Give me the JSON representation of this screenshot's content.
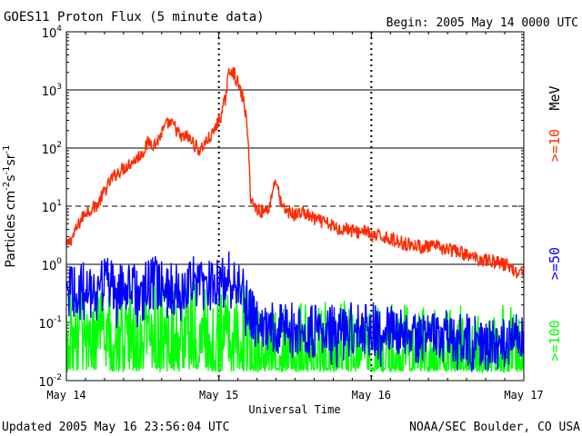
{
  "header": {
    "title": "GOES11 Proton Flux (5 minute data)",
    "begin": "Begin: 2005 May 14 0000 UTC"
  },
  "footer": {
    "updated": "Updated 2005 May 16 23:56:04 UTC",
    "credit": "NOAA/SEC Boulder, CO USA"
  },
  "chart_data": {
    "type": "line",
    "title": "GOES11 Proton Flux (5 minute data)",
    "xlabel": "Universal Time",
    "ylabel": "Particles cm^-2 s^-1 sr^-1",
    "y_scale": "log",
    "ylim": [
      0.01,
      10000
    ],
    "y_ticks": [
      {
        "value": 0.01,
        "base": "10",
        "exp": "-2"
      },
      {
        "value": 0.1,
        "base": "10",
        "exp": "-1"
      },
      {
        "value": 1,
        "base": "10",
        "exp": "0"
      },
      {
        "value": 10,
        "base": "10",
        "exp": "1"
      },
      {
        "value": 100,
        "base": "10",
        "exp": "2"
      },
      {
        "value": 1000,
        "base": "10",
        "exp": "3"
      },
      {
        "value": 10000,
        "base": "10",
        "exp": "4"
      }
    ],
    "xlim": [
      0,
      72
    ],
    "x_unit": "hours since 2005 May 14 0000 UTC",
    "x_ticks": [
      {
        "value": 0,
        "label": "May 14"
      },
      {
        "value": 24,
        "label": "May 15"
      },
      {
        "value": 48,
        "label": "May 16"
      },
      {
        "value": 72,
        "label": "May 17"
      }
    ],
    "grid": {
      "solid": [
        1,
        100,
        1000
      ],
      "dashed": [
        10
      ]
    },
    "legend_placement": "right",
    "series": [
      {
        "name": ">=10 MeV",
        "label_main": ">=10",
        "label_unit": "MeV",
        "color": "#ff2a00",
        "points": [
          [
            0,
            2
          ],
          [
            1,
            3
          ],
          [
            2,
            5
          ],
          [
            3,
            8
          ],
          [
            4,
            9
          ],
          [
            5,
            11
          ],
          [
            6,
            18
          ],
          [
            7,
            28
          ],
          [
            8,
            38
          ],
          [
            9,
            45
          ],
          [
            10,
            55
          ],
          [
            11,
            65
          ],
          [
            12,
            85
          ],
          [
            13,
            130
          ],
          [
            14,
            115
          ],
          [
            15,
            180
          ],
          [
            16,
            270
          ],
          [
            17,
            240
          ],
          [
            18,
            150
          ],
          [
            19,
            160
          ],
          [
            20,
            120
          ],
          [
            21,
            90
          ],
          [
            22,
            130
          ],
          [
            23,
            170
          ],
          [
            24,
            300
          ],
          [
            24.5,
            400
          ],
          [
            25,
            700
          ],
          [
            25.5,
            1800
          ],
          [
            26,
            2400
          ],
          [
            27,
            1300
          ],
          [
            28,
            600
          ],
          [
            28.5,
            200
          ],
          [
            29,
            15
          ],
          [
            29.5,
            10
          ],
          [
            30,
            9
          ],
          [
            31,
            8
          ],
          [
            32,
            10
          ],
          [
            32.5,
            20
          ],
          [
            33,
            30
          ],
          [
            33.5,
            15
          ],
          [
            34,
            9
          ],
          [
            35,
            8
          ],
          [
            36,
            7
          ],
          [
            37,
            8
          ],
          [
            38,
            7
          ],
          [
            39,
            6
          ],
          [
            40,
            5.5
          ],
          [
            41,
            5
          ],
          [
            42,
            4.5
          ],
          [
            43,
            4
          ],
          [
            44,
            4.2
          ],
          [
            45,
            3.8
          ],
          [
            46,
            3.5
          ],
          [
            47,
            4
          ],
          [
            48,
            3
          ],
          [
            50,
            3
          ],
          [
            52,
            2.5
          ],
          [
            54,
            2.2
          ],
          [
            56,
            2
          ],
          [
            58,
            2
          ],
          [
            60,
            1.8
          ],
          [
            62,
            1.6
          ],
          [
            64,
            1.3
          ],
          [
            66,
            1.2
          ],
          [
            68,
            1.1
          ],
          [
            70,
            0.9
          ],
          [
            71,
            0.7
          ],
          [
            72,
            0.8
          ]
        ]
      },
      {
        "name": ">=50 MeV",
        "label_main": ">=50",
        "color": "#0000ff",
        "points": [
          [
            0,
            0.3
          ],
          [
            2,
            0.45
          ],
          [
            4,
            0.5
          ],
          [
            6,
            0.5
          ],
          [
            8,
            0.45
          ],
          [
            10,
            0.5
          ],
          [
            12,
            0.45
          ],
          [
            14,
            0.5
          ],
          [
            16,
            0.4
          ],
          [
            18,
            0.45
          ],
          [
            20,
            0.5
          ],
          [
            22,
            0.45
          ],
          [
            24,
            0.45
          ],
          [
            25,
            0.6
          ],
          [
            26,
            0.7
          ],
          [
            27,
            0.5
          ],
          [
            28,
            0.3
          ],
          [
            29,
            0.15
          ],
          [
            30,
            0.1
          ],
          [
            32,
            0.08
          ],
          [
            34,
            0.09
          ],
          [
            36,
            0.08
          ],
          [
            40,
            0.08
          ],
          [
            44,
            0.08
          ],
          [
            48,
            0.08
          ],
          [
            52,
            0.07
          ],
          [
            56,
            0.06
          ],
          [
            60,
            0.06
          ],
          [
            64,
            0.05
          ],
          [
            68,
            0.05
          ],
          [
            72,
            0.05
          ]
        ]
      },
      {
        "name": ">=100 MeV",
        "label_main": ">=100",
        "color": "#00ff00",
        "points": [
          [
            0,
            0.06
          ],
          [
            4,
            0.07
          ],
          [
            8,
            0.06
          ],
          [
            12,
            0.07
          ],
          [
            16,
            0.06
          ],
          [
            20,
            0.07
          ],
          [
            24,
            0.06
          ],
          [
            26,
            0.08
          ],
          [
            28,
            0.06
          ],
          [
            30,
            0.03
          ],
          [
            34,
            0.03
          ],
          [
            40,
            0.03
          ],
          [
            48,
            0.03
          ],
          [
            56,
            0.025
          ],
          [
            64,
            0.025
          ],
          [
            72,
            0.025
          ]
        ]
      }
    ]
  }
}
